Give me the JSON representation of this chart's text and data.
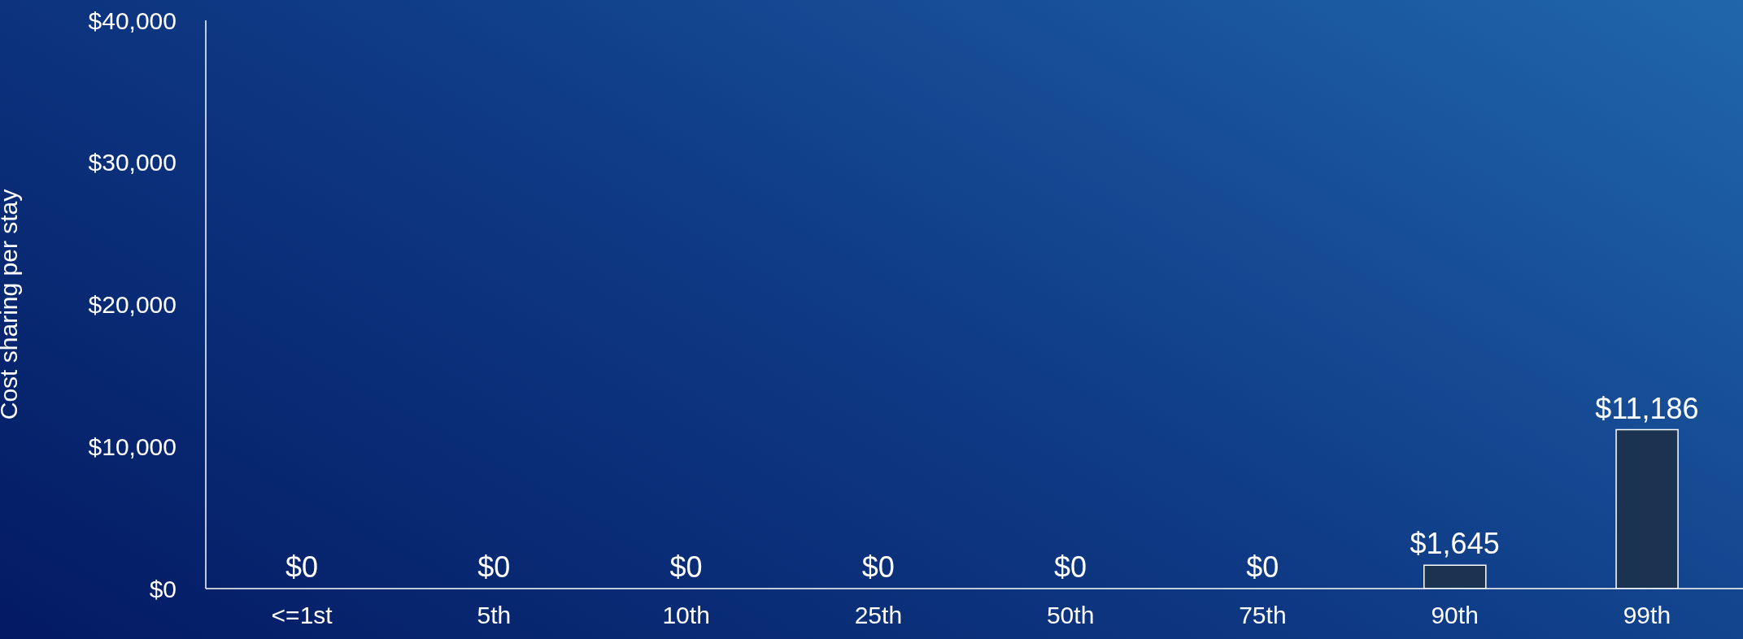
{
  "chart_data": {
    "type": "bar",
    "ylabel": "Cost sharing per stay",
    "categories": [
      "<=1st",
      "5th",
      "10th",
      "25th",
      "50th",
      "75th",
      "90th",
      "99th"
    ],
    "values": [
      0,
      0,
      0,
      0,
      0,
      0,
      1645,
      11186
    ],
    "value_labels": [
      "$0",
      "$0",
      "$0",
      "$0",
      "$0",
      "$0",
      "$1,645",
      "$11,186"
    ],
    "color": "#1b3350",
    "ylim": [
      0,
      40000
    ],
    "yticks": [
      {
        "value": 0,
        "label": "$0"
      },
      {
        "value": 10000,
        "label": "$10,000"
      },
      {
        "value": 20000,
        "label": "$20,000"
      },
      {
        "value": 30000,
        "label": "$30,000"
      },
      {
        "value": 40000,
        "label": "$40,000"
      }
    ],
    "grid": false,
    "legend": false
  }
}
